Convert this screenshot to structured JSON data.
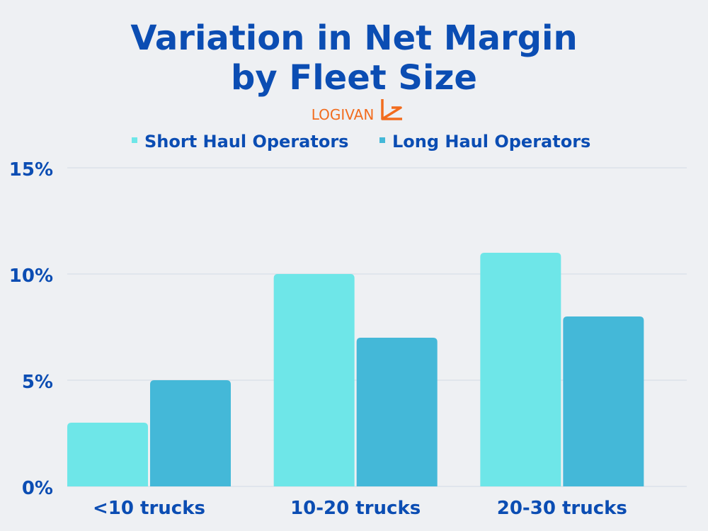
{
  "brand": {
    "name": "LOGIVAN"
  },
  "colors": {
    "title": "#0b4db3",
    "brand": "#f26c1e",
    "short_haul": "#6ee6e8",
    "long_haul": "#44b8d8",
    "grid": "#d3dae6",
    "background": "#eef0f3"
  },
  "chart_data": {
    "type": "bar",
    "title_lines": [
      "Variation in Net Margin",
      "by Fleet Size"
    ],
    "xlabel": "",
    "ylabel": "",
    "categories": [
      "<10 trucks",
      "10-20 trucks",
      "20-30 trucks"
    ],
    "series": [
      {
        "name": "Short Haul Operators",
        "values": [
          3,
          10,
          11
        ]
      },
      {
        "name": "Long Haul Operators",
        "values": [
          5,
          7,
          8
        ]
      }
    ],
    "ylim": [
      0,
      15
    ],
    "yticks": [
      0,
      5,
      10,
      15
    ],
    "ytick_labels": [
      "0%",
      "5%",
      "10%",
      "15%"
    ],
    "unit": "%",
    "grid": true,
    "legend_position": "top-center"
  }
}
